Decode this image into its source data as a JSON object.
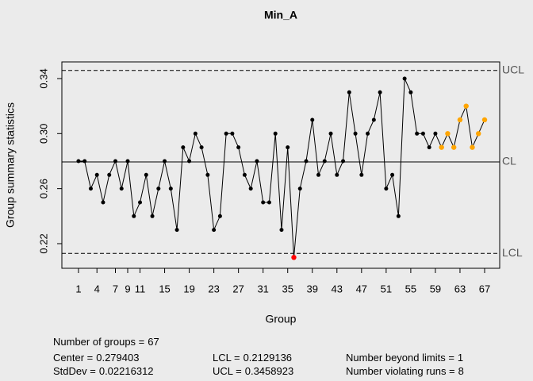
{
  "chart_data": {
    "type": "qcc",
    "title": "Min_A",
    "xlabel": "Group",
    "ylabel": "Group summary statistics",
    "categories": [
      1,
      2,
      3,
      4,
      5,
      6,
      7,
      8,
      9,
      10,
      11,
      12,
      13,
      14,
      15,
      16,
      17,
      18,
      19,
      20,
      21,
      22,
      23,
      24,
      25,
      26,
      27,
      28,
      29,
      30,
      31,
      32,
      33,
      34,
      35,
      36,
      37,
      38,
      39,
      40,
      41,
      42,
      43,
      44,
      45,
      46,
      47,
      48,
      49,
      50,
      51,
      52,
      53,
      54,
      55,
      56,
      57,
      58,
      59,
      60,
      61,
      62,
      63,
      64,
      65,
      66,
      67
    ],
    "values": [
      0.28,
      0.28,
      0.26,
      0.27,
      0.25,
      0.27,
      0.28,
      0.26,
      0.28,
      0.24,
      0.25,
      0.27,
      0.24,
      0.26,
      0.28,
      0.26,
      0.23,
      0.29,
      0.28,
      0.3,
      0.29,
      0.27,
      0.23,
      0.24,
      0.3,
      0.3,
      0.29,
      0.27,
      0.26,
      0.28,
      0.25,
      0.25,
      0.3,
      0.23,
      0.29,
      0.21,
      0.26,
      0.28,
      0.31,
      0.27,
      0.28,
      0.3,
      0.27,
      0.28,
      0.33,
      0.3,
      0.27,
      0.3,
      0.31,
      0.33,
      0.26,
      0.27,
      0.24,
      0.34,
      0.33,
      0.3,
      0.3,
      0.29,
      0.3,
      0.29,
      0.3,
      0.29,
      0.31,
      0.32,
      0.29,
      0.3,
      0.31
    ],
    "point_colors": [
      "#000000",
      "#000000",
      "#000000",
      "#000000",
      "#000000",
      "#000000",
      "#000000",
      "#000000",
      "#000000",
      "#000000",
      "#000000",
      "#000000",
      "#000000",
      "#000000",
      "#000000",
      "#000000",
      "#000000",
      "#000000",
      "#000000",
      "#000000",
      "#000000",
      "#000000",
      "#000000",
      "#000000",
      "#000000",
      "#000000",
      "#000000",
      "#000000",
      "#000000",
      "#000000",
      "#000000",
      "#000000",
      "#000000",
      "#000000",
      "#000000",
      "#ff0000",
      "#000000",
      "#000000",
      "#000000",
      "#000000",
      "#000000",
      "#000000",
      "#000000",
      "#000000",
      "#000000",
      "#000000",
      "#000000",
      "#000000",
      "#000000",
      "#000000",
      "#000000",
      "#000000",
      "#000000",
      "#000000",
      "#000000",
      "#000000",
      "#000000",
      "#000000",
      "#000000",
      "#ffa500",
      "#ffa500",
      "#ffa500",
      "#ffa500",
      "#ffa500",
      "#ffa500",
      "#ffa500",
      "#ffa500"
    ],
    "xlim": [
      -1.7,
      69.45
    ],
    "xticks": [
      1,
      4,
      7,
      9,
      11,
      15,
      19,
      23,
      27,
      31,
      35,
      39,
      43,
      47,
      51,
      55,
      59,
      63,
      67
    ],
    "ylim": [
      0.2021,
      0.3521
    ],
    "yticks": [
      0.22,
      0.26,
      {
        "value": 0.3,
        "label": "0.30"
      },
      0.34
    ],
    "limit_labels": {
      "ucl": "UCL",
      "cl": "CL",
      "lcl": "LCL"
    },
    "stats": [
      {
        "label": "Number of groups =",
        "value": 67
      },
      {
        "label": "Center =",
        "value": 0.279403
      },
      {
        "label": "StdDev =",
        "value": 0.02216312
      },
      {
        "label": "LCL =",
        "value": 0.2129136
      },
      {
        "label": "UCL =",
        "value": 0.3458923
      },
      {
        "label": "Number beyond limits =",
        "value": 1
      },
      {
        "label": "Number violating runs =",
        "value": 8
      }
    ]
  }
}
